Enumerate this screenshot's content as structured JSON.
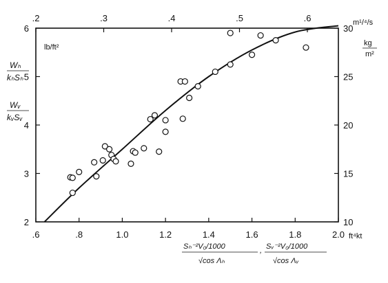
{
  "chart_data": {
    "type": "scatter",
    "title": "",
    "x_bottom": {
      "range": [
        0.6,
        2.0
      ],
      "ticks": [
        0.6,
        0.8,
        1.0,
        1.2,
        1.4,
        1.6,
        1.8,
        2.0
      ],
      "tick_labels": [
        ".6",
        ".8",
        "1.0",
        "1.2",
        "1.4",
        "1.6",
        "1.8",
        "2.0"
      ],
      "unit": "ft⁴kt",
      "label_left_num": "Sₕ⁻²V₀/1000",
      "label_left_den": "√cos Λₕ",
      "label_sep": ",",
      "label_right_num": "Sᵥ⁻²V₀/1000",
      "label_right_den": "√cos Λᵥ"
    },
    "x_top": {
      "range": [
        0.2,
        0.6
      ],
      "tick_labels": [
        ".2",
        ".3",
        ".4",
        ".5",
        ".6"
      ],
      "ticks": [
        0.2,
        0.3,
        0.4,
        0.5,
        0.6
      ],
      "unit": "m¹/⁴/s"
    },
    "y_left": {
      "range": [
        2,
        6
      ],
      "ticks": [
        2,
        3,
        4,
        5,
        6
      ],
      "tick_labels": [
        "2",
        "3",
        "4",
        "5",
        "6"
      ],
      "unit": "lb/ft²",
      "label_top_num": "Wₕ",
      "label_top_den": "kₕSₕ",
      "label_bottom_num": "Wᵥ",
      "label_bottom_den": "kᵥSᵥ"
    },
    "y_right": {
      "range": [
        10,
        30
      ],
      "ticks": [
        10,
        15,
        20,
        25,
        30
      ],
      "tick_labels": [
        "10",
        "15",
        "20",
        "25",
        "30"
      ],
      "unit_top": "kg",
      "unit_bottom": "m²"
    },
    "points": [
      {
        "x": 0.76,
        "y": 2.92
      },
      {
        "x": 0.77,
        "y": 2.91
      },
      {
        "x": 0.77,
        "y": 2.6
      },
      {
        "x": 0.8,
        "y": 3.03
      },
      {
        "x": 0.87,
        "y": 3.23
      },
      {
        "x": 0.88,
        "y": 2.94
      },
      {
        "x": 0.91,
        "y": 3.27
      },
      {
        "x": 0.92,
        "y": 3.56
      },
      {
        "x": 0.94,
        "y": 3.5
      },
      {
        "x": 0.95,
        "y": 3.38
      },
      {
        "x": 0.96,
        "y": 3.3
      },
      {
        "x": 0.97,
        "y": 3.25
      },
      {
        "x": 1.04,
        "y": 3.2
      },
      {
        "x": 1.05,
        "y": 3.46
      },
      {
        "x": 1.06,
        "y": 3.43
      },
      {
        "x": 1.1,
        "y": 3.52
      },
      {
        "x": 1.13,
        "y": 4.12
      },
      {
        "x": 1.15,
        "y": 4.2
      },
      {
        "x": 1.17,
        "y": 3.45
      },
      {
        "x": 1.2,
        "y": 3.86
      },
      {
        "x": 1.2,
        "y": 4.1
      },
      {
        "x": 1.27,
        "y": 4.9
      },
      {
        "x": 1.28,
        "y": 4.13
      },
      {
        "x": 1.29,
        "y": 4.9
      },
      {
        "x": 1.31,
        "y": 4.56
      },
      {
        "x": 1.35,
        "y": 4.8
      },
      {
        "x": 1.43,
        "y": 5.1
      },
      {
        "x": 1.5,
        "y": 5.25
      },
      {
        "x": 1.5,
        "y": 5.9
      },
      {
        "x": 1.6,
        "y": 5.45
      },
      {
        "x": 1.64,
        "y": 5.85
      },
      {
        "x": 1.71,
        "y": 5.75
      },
      {
        "x": 1.85,
        "y": 5.6
      }
    ],
    "curve": [
      {
        "x": 0.64,
        "y": 2.0
      },
      {
        "x": 0.8,
        "y": 2.7
      },
      {
        "x": 1.0,
        "y": 3.5
      },
      {
        "x": 1.2,
        "y": 4.3
      },
      {
        "x": 1.4,
        "y": 5.0
      },
      {
        "x": 1.6,
        "y": 5.55
      },
      {
        "x": 1.8,
        "y": 5.92
      },
      {
        "x": 2.0,
        "y": 6.05
      }
    ],
    "grid": false,
    "legend": "none"
  }
}
